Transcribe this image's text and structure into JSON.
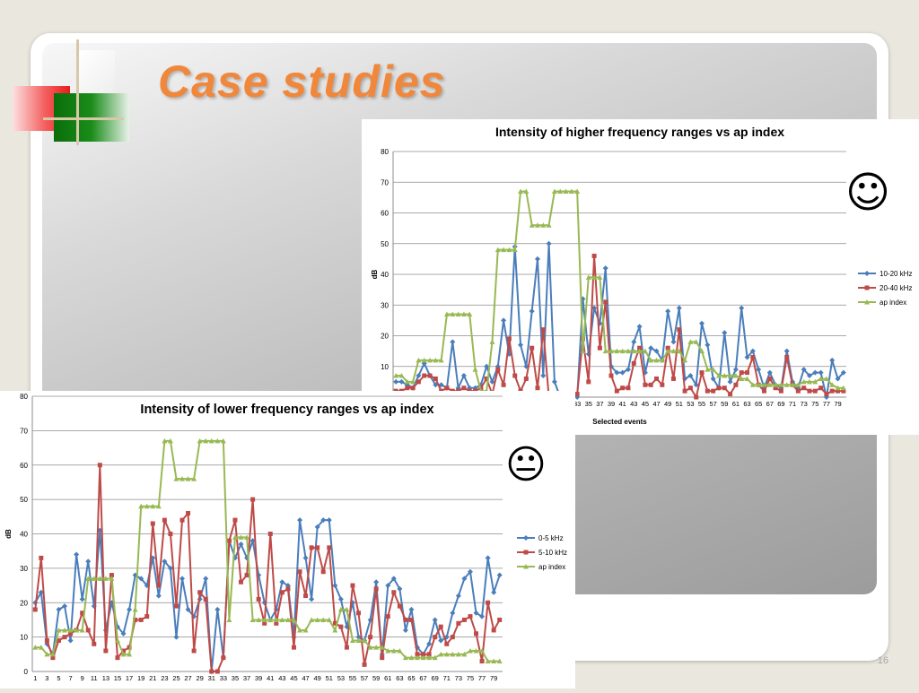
{
  "slide": {
    "title": "Case studies",
    "page_number": "16",
    "colors": {
      "title": "#f0873a"
    }
  },
  "top_face": "☺",
  "bottom_face": "😐",
  "chart_data": [
    {
      "type": "line",
      "title": "Intensity of higher frequency ranges vs ap index",
      "xlabel": "Selected events",
      "ylabel": "dB",
      "ylim": [
        0,
        80
      ],
      "yticks": [
        10,
        20,
        30,
        40,
        50,
        60,
        70,
        80
      ],
      "xtick_labels": [
        "33",
        "35",
        "37",
        "39",
        "41",
        "43",
        "45",
        "47",
        "49",
        "51",
        "53",
        "55",
        "57",
        "59",
        "61",
        "63",
        "65",
        "67",
        "69",
        "71",
        "73",
        "75",
        "77",
        "79"
      ],
      "x": [
        1,
        2,
        3,
        4,
        5,
        6,
        7,
        8,
        9,
        10,
        11,
        12,
        13,
        14,
        15,
        16,
        17,
        18,
        19,
        20,
        21,
        22,
        23,
        24,
        25,
        26,
        27,
        28,
        29,
        30,
        31,
        32,
        33,
        34,
        35,
        36,
        37,
        38,
        39,
        40,
        41,
        42,
        43,
        44,
        45,
        46,
        47,
        48,
        49,
        50,
        51,
        52,
        53,
        54,
        55,
        56,
        57,
        58,
        59,
        60,
        61,
        62,
        63,
        64,
        65,
        66,
        67,
        68,
        69,
        70,
        71,
        72,
        73,
        74,
        75,
        76,
        77,
        78,
        79,
        80
      ],
      "legend": "right",
      "grid": true,
      "series": [
        {
          "name": "10-20 kHz",
          "color": "#4a7ebb",
          "marker": "diamond",
          "values": [
            5,
            5,
            4,
            3,
            7,
            11,
            7,
            4,
            4,
            3,
            18,
            3,
            7,
            3,
            3,
            4,
            10,
            5,
            10,
            25,
            14,
            49,
            17,
            10,
            28,
            45,
            7,
            50,
            5,
            0,
            0,
            0,
            0,
            32,
            14,
            29,
            24,
            42,
            10,
            8,
            8,
            9,
            18,
            23,
            8,
            16,
            15,
            12,
            28,
            18,
            29,
            6,
            7,
            4,
            24,
            17,
            6,
            3,
            21,
            5,
            9,
            29,
            13,
            15,
            9,
            3,
            8,
            4,
            3,
            15,
            5,
            3,
            9,
            7,
            8,
            8,
            0,
            12,
            6,
            8
          ]
        },
        {
          "name": "20-40 kHz",
          "color": "#be4b48",
          "marker": "square",
          "values": [
            2,
            2,
            3,
            3,
            5,
            7,
            7,
            6,
            2,
            3,
            2,
            2,
            3,
            2,
            2,
            3,
            6,
            1,
            9,
            4,
            19,
            7,
            2,
            6,
            16,
            3,
            22,
            0,
            0,
            0,
            1,
            1,
            1,
            19,
            5,
            46,
            16,
            31,
            7,
            2,
            3,
            3,
            11,
            16,
            4,
            4,
            6,
            4,
            16,
            6,
            22,
            2,
            3,
            0,
            8,
            2,
            2,
            3,
            3,
            1,
            4,
            8,
            8,
            13,
            4,
            2,
            6,
            3,
            2,
            13,
            4,
            2,
            3,
            2,
            2,
            3,
            1,
            2,
            2,
            2
          ]
        },
        {
          "name": "ap index",
          "color": "#98b954",
          "marker": "triangle",
          "values": [
            7,
            7,
            5,
            5,
            12,
            12,
            12,
            12,
            12,
            27,
            27,
            27,
            27,
            27,
            9,
            2,
            2,
            18,
            48,
            48,
            48,
            48,
            67,
            67,
            56,
            56,
            56,
            56,
            67,
            67,
            67,
            67,
            67,
            15,
            39,
            39,
            39,
            15,
            15,
            15,
            15,
            15,
            15,
            15,
            15,
            12,
            12,
            12,
            15,
            15,
            15,
            12,
            18,
            18,
            15,
            9,
            9,
            7,
            7,
            7,
            7,
            6,
            6,
            4,
            4,
            4,
            4,
            4,
            4,
            4,
            4,
            4,
            5,
            5,
            5,
            6,
            6,
            4,
            3,
            3
          ]
        }
      ]
    },
    {
      "type": "line",
      "title": "Intensity of lower frequency ranges vs ap index",
      "xlabel": "",
      "ylabel": "dB",
      "ylim": [
        0,
        80
      ],
      "yticks": [
        0,
        10,
        20,
        30,
        40,
        50,
        60,
        70,
        80
      ],
      "xtick_labels": [
        "1",
        "3",
        "5",
        "7",
        "9",
        "11",
        "13",
        "15",
        "17",
        "19",
        "21",
        "23",
        "25",
        "27",
        "29",
        "31",
        "33",
        "35",
        "37",
        "39",
        "41",
        "43",
        "45",
        "47",
        "49",
        "51",
        "53",
        "55",
        "57",
        "59",
        "61",
        "63",
        "65",
        "67",
        "69",
        "71",
        "73",
        "75",
        "77",
        "79"
      ],
      "x": [
        1,
        2,
        3,
        4,
        5,
        6,
        7,
        8,
        9,
        10,
        11,
        12,
        13,
        14,
        15,
        16,
        17,
        18,
        19,
        20,
        21,
        22,
        23,
        24,
        25,
        26,
        27,
        28,
        29,
        30,
        31,
        32,
        33,
        34,
        35,
        36,
        37,
        38,
        39,
        40,
        41,
        42,
        43,
        44,
        45,
        46,
        47,
        48,
        49,
        50,
        51,
        52,
        53,
        54,
        55,
        56,
        57,
        58,
        59,
        60,
        61,
        62,
        63,
        64,
        65,
        66,
        67,
        68,
        69,
        70,
        71,
        72,
        73,
        74,
        75,
        76,
        77,
        78,
        79,
        80
      ],
      "legend": "right",
      "grid": true,
      "series": [
        {
          "name": "0-5 kHz",
          "color": "#4a7ebb",
          "marker": "diamond",
          "values": [
            20,
            23,
            8,
            5,
            18,
            19,
            9,
            34,
            21,
            32,
            19,
            41,
            12,
            20,
            13,
            11,
            18,
            28,
            27,
            25,
            33,
            22,
            32,
            30,
            10,
            27,
            18,
            16,
            21,
            27,
            0,
            18,
            4,
            38,
            33,
            37,
            33,
            38,
            28,
            20,
            15,
            18,
            26,
            25,
            10,
            44,
            33,
            21,
            42,
            44,
            44,
            25,
            21,
            13,
            20,
            10,
            9,
            15,
            26,
            5,
            25,
            27,
            24,
            12,
            18,
            7,
            5,
            8,
            15,
            9,
            10,
            17,
            22,
            27,
            29,
            17,
            16,
            33,
            23,
            28
          ]
        },
        {
          "name": "5-10 kHz",
          "color": "#be4b48",
          "marker": "square",
          "values": [
            18,
            33,
            9,
            4,
            9,
            10,
            11,
            12,
            17,
            12,
            8,
            60,
            6,
            28,
            4,
            6,
            7,
            15,
            15,
            16,
            43,
            25,
            44,
            40,
            19,
            44,
            46,
            6,
            23,
            21,
            0,
            0,
            4,
            38,
            44,
            26,
            28,
            50,
            21,
            14,
            40,
            14,
            23,
            24,
            7,
            29,
            22,
            36,
            36,
            29,
            36,
            14,
            13,
            7,
            25,
            17,
            2,
            10,
            24,
            4,
            16,
            23,
            19,
            15,
            15,
            5,
            5,
            5,
            10,
            13,
            8,
            10,
            14,
            15,
            16,
            11,
            3,
            20,
            12,
            15
          ]
        },
        {
          "name": "ap index",
          "color": "#98b954",
          "marker": "triangle",
          "values": [
            7,
            7,
            5,
            5,
            12,
            12,
            12,
            12,
            12,
            27,
            27,
            27,
            27,
            27,
            9,
            5,
            5,
            18,
            48,
            48,
            48,
            48,
            67,
            67,
            56,
            56,
            56,
            56,
            67,
            67,
            67,
            67,
            67,
            15,
            39,
            39,
            39,
            15,
            15,
            15,
            15,
            15,
            15,
            15,
            15,
            12,
            12,
            15,
            15,
            15,
            15,
            12,
            18,
            18,
            9,
            9,
            9,
            7,
            7,
            7,
            6,
            6,
            6,
            4,
            4,
            4,
            4,
            4,
            4,
            5,
            5,
            5,
            5,
            5,
            6,
            6,
            6,
            3,
            3,
            3
          ]
        }
      ]
    }
  ]
}
